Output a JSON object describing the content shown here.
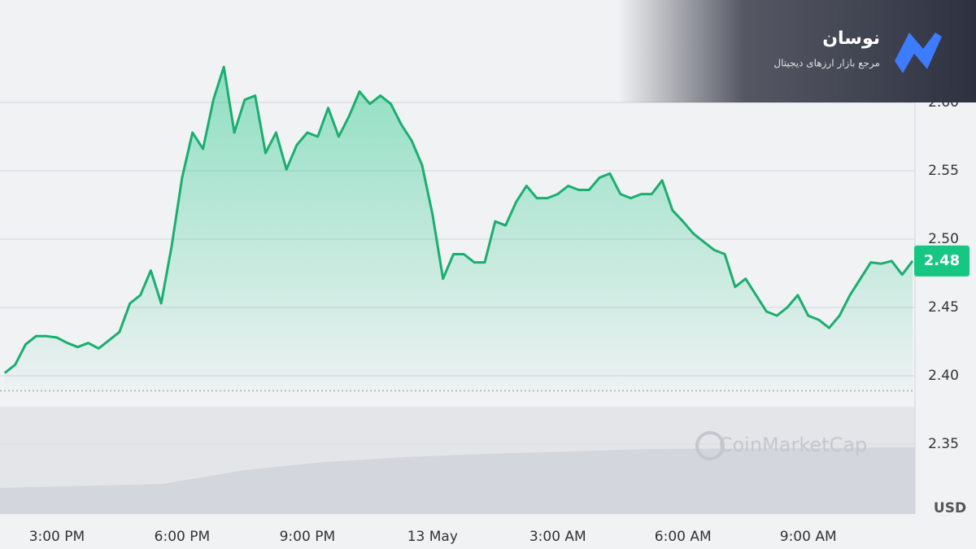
{
  "chart_data": {
    "type": "line",
    "categories": [
      null,
      null,
      null,
      null,
      null,
      "3:00 PM",
      null,
      null,
      null,
      null,
      null,
      null,
      null,
      null,
      null,
      null,
      null,
      "6:00 PM",
      null,
      null,
      null,
      null,
      null,
      null,
      null,
      null,
      null,
      null,
      null,
      "9:00 PM",
      null,
      null,
      null,
      null,
      null,
      null,
      null,
      null,
      null,
      null,
      null,
      "13 May",
      null,
      null,
      null,
      null,
      null,
      null,
      null,
      null,
      null,
      null,
      null,
      "3:00 AM",
      null,
      null,
      null,
      null,
      null,
      null,
      null,
      null,
      null,
      null,
      null,
      "6:00 AM",
      null,
      null,
      null,
      null,
      null,
      null,
      null,
      null,
      null,
      null,
      null,
      "9:00 AM",
      null,
      null,
      null,
      null,
      null,
      null,
      null,
      null,
      null,
      null
    ],
    "values": [
      2.402,
      2.408,
      2.423,
      2.429,
      2.429,
      2.428,
      2.424,
      2.421,
      2.424,
      2.42,
      2.426,
      2.432,
      2.453,
      2.459,
      2.477,
      2.453,
      2.495,
      2.545,
      2.578,
      2.566,
      2.602,
      2.626,
      2.578,
      2.602,
      2.605,
      2.563,
      2.578,
      2.551,
      2.569,
      2.578,
      2.575,
      2.596,
      2.575,
      2.59,
      2.608,
      2.599,
      2.605,
      2.599,
      2.584,
      2.572,
      2.554,
      2.518,
      2.471,
      2.489,
      2.489,
      2.483,
      2.483,
      2.513,
      2.51,
      2.527,
      2.539,
      2.53,
      2.53,
      2.533,
      2.539,
      2.536,
      2.536,
      2.545,
      2.548,
      2.533,
      2.53,
      2.533,
      2.533,
      2.543,
      2.521,
      2.513,
      2.504,
      2.498,
      2.492,
      2.489,
      2.465,
      2.471,
      2.459,
      2.447,
      2.444,
      2.45,
      2.459,
      2.444,
      2.441,
      2.435,
      2.444,
      2.459,
      2.471,
      2.483,
      2.482,
      2.484,
      2.474,
      2.484
    ],
    "color": "#1aae6f",
    "ylim": [
      2.3,
      2.675
    ],
    "yticks": [
      2.35,
      {
        "value": 2.4,
        "label": "2.40"
      },
      2.45,
      {
        "value": 2.5,
        "label": "2.50"
      },
      2.55,
      {
        "value": 2.6,
        "label": "2.60"
      }
    ],
    "grid": true,
    "reference_line": 2.389,
    "price_label": "2.48",
    "y_unit": "USD",
    "watermark": "CoinMarketCap",
    "brand": {
      "name": "نوسان",
      "tagline": "مرجع بازار ارزهای دیجیتال"
    }
  }
}
